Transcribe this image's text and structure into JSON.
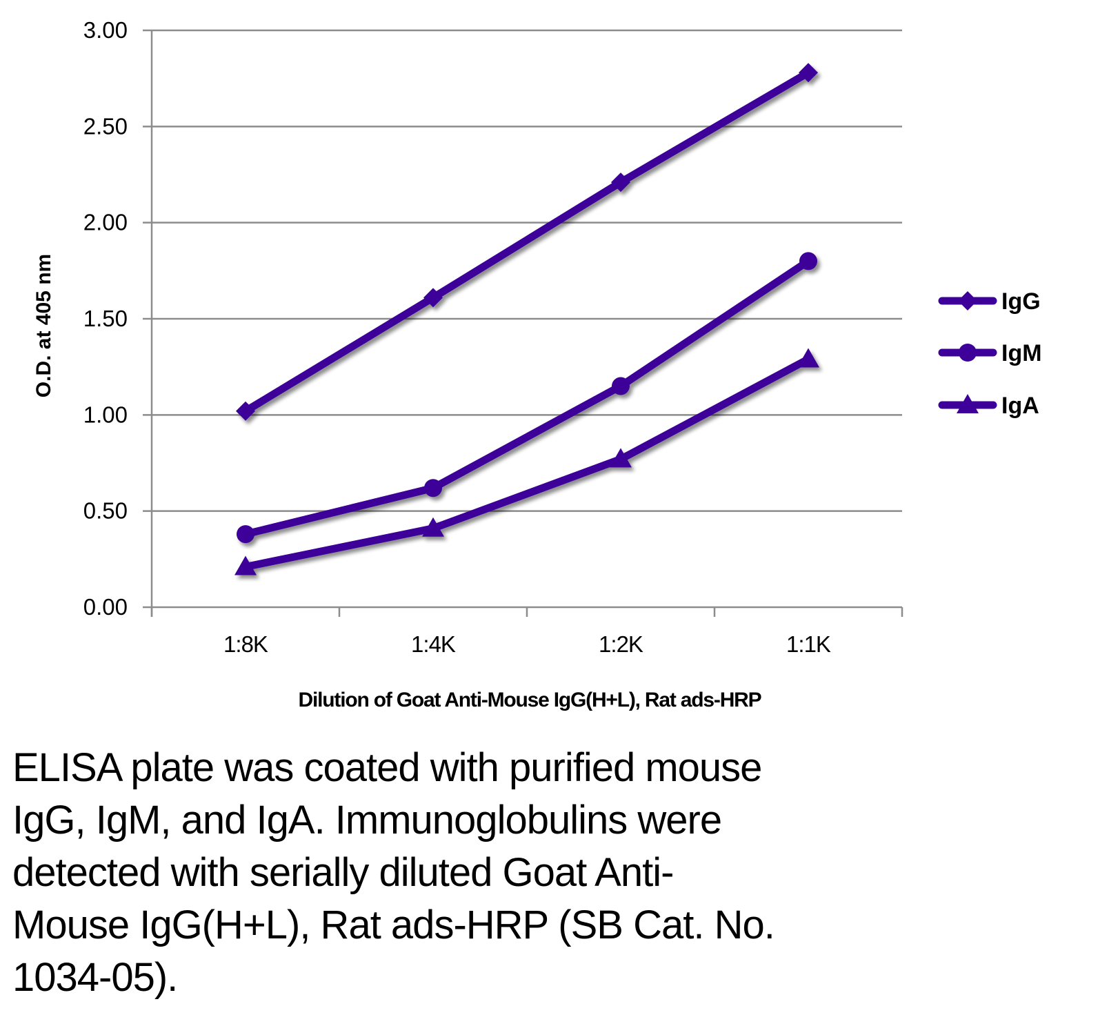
{
  "chart_data": {
    "type": "line",
    "title": "",
    "xlabel": "Dilution of Goat Anti-Mouse IgG(H+L), Rat ads-HRP",
    "ylabel": "O.D. at 405 nm",
    "categories": [
      "1:8K",
      "1:4K",
      "1:2K",
      "1:1K"
    ],
    "ylim": [
      0,
      3.0
    ],
    "yticks": [
      "0.00",
      "0.50",
      "1.00",
      "1.50",
      "2.00",
      "2.50",
      "3.00"
    ],
    "ytick_values": [
      0,
      0.5,
      1.0,
      1.5,
      2.0,
      2.5,
      3.0
    ],
    "grid": true,
    "legend_position": "right",
    "series": [
      {
        "name": "IgG",
        "marker": "diamond",
        "color": "#3d0099",
        "values": [
          1.02,
          1.61,
          2.21,
          2.78
        ]
      },
      {
        "name": "IgM",
        "marker": "circle",
        "color": "#3d0099",
        "values": [
          0.38,
          0.62,
          1.15,
          1.8
        ]
      },
      {
        "name": "IgA",
        "marker": "triangle",
        "color": "#3d0099",
        "values": [
          0.21,
          0.41,
          0.77,
          1.29
        ]
      }
    ]
  },
  "caption": "ELISA plate was coated with purified mouse\nIgG, IgM, and IgA.  Immunoglobulins were\ndetected with serially diluted Goat Anti-\nMouse IgG(H+L), Rat ads-HRP (SB Cat. No.\n1034-05).",
  "colors": {
    "series": "#3d0099",
    "grid": "#8c8c8c",
    "text": "#000000"
  }
}
